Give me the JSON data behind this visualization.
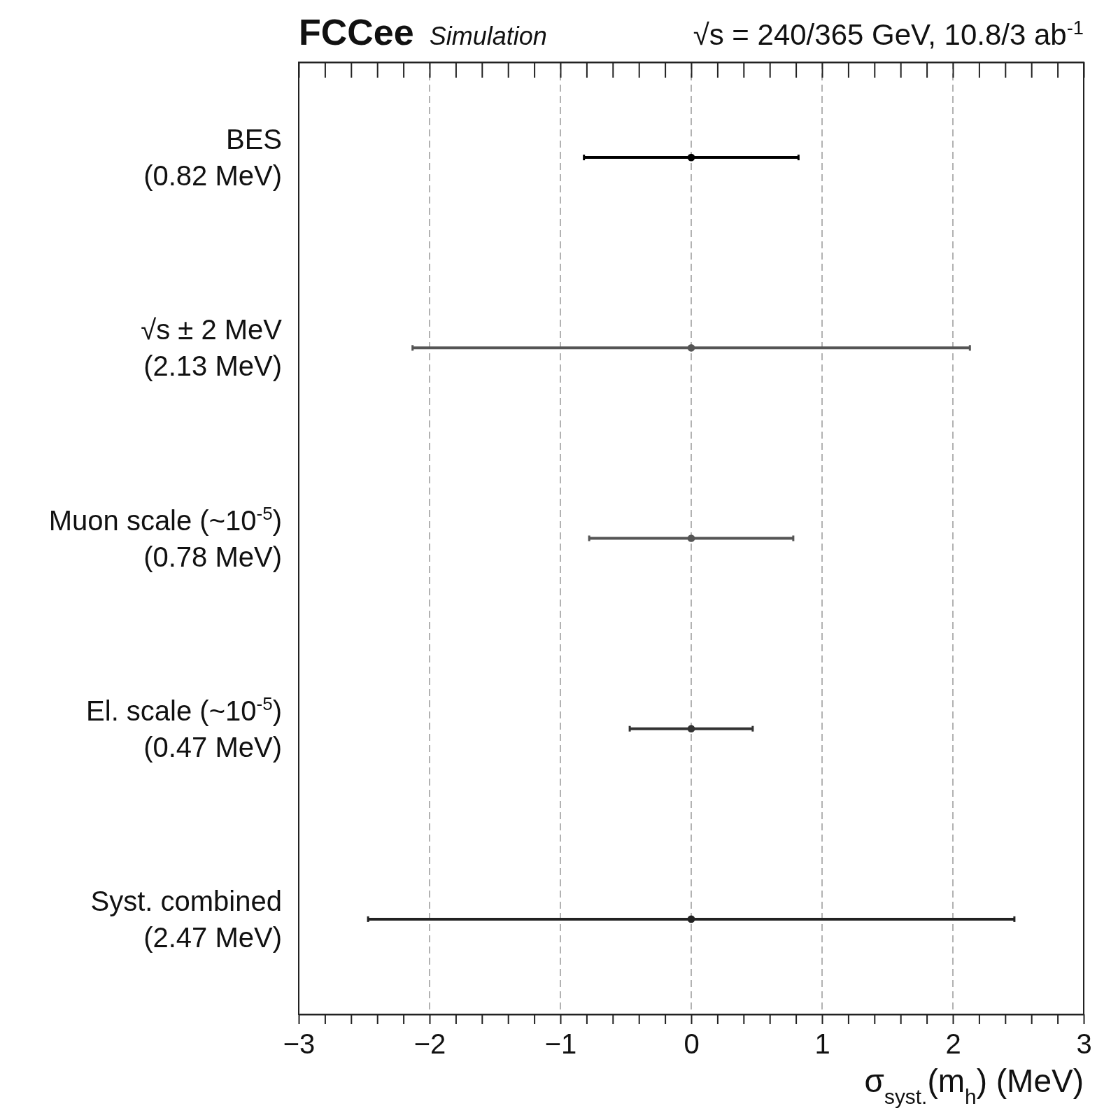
{
  "chart_data": {
    "type": "scatter",
    "orientation": "horizontal",
    "title": "FCCee",
    "subtitle": "Simulation",
    "annotations": [
      "√s = 240/365 GeV, 10.8/3 ab$^{-1}$"
    ],
    "xlabel": "σ$_{syst.}$(m$_{h}$) (MeV)",
    "categories": [
      "BES\n(0.82 MeV)",
      "√s ± 2 MeV\n(2.13 MeV)",
      "Muon scale (~10$^{-5}$)\n(0.78 MeV)",
      "El. scale (~10$^{-5}$)\n(0.47 MeV)",
      "Syst. combined\n(2.47 MeV)"
    ],
    "values": [
      0,
      0,
      0,
      0,
      0
    ],
    "errors": [
      0.82,
      2.13,
      0.78,
      0.47,
      2.47
    ],
    "colors": [
      "#000000",
      "#555555",
      "#555555",
      "#333333",
      "#222222"
    ],
    "marker": "circle",
    "grid": "x",
    "xlim": [
      -3,
      3
    ],
    "xticks": [
      {
        "value": -3,
        "label": "−3"
      },
      {
        "value": -2.8,
        "label": null
      },
      {
        "value": -2.6,
        "label": null
      },
      {
        "value": -2.4,
        "label": null
      },
      {
        "value": -2.2,
        "label": null
      },
      {
        "value": -2,
        "label": "−2"
      },
      {
        "value": -1.8,
        "label": null
      },
      {
        "value": -1.6,
        "label": null
      },
      {
        "value": -1.4,
        "label": null
      },
      {
        "value": -1.2,
        "label": null
      },
      {
        "value": -1,
        "label": "−1"
      },
      {
        "value": -0.8,
        "label": null
      },
      {
        "value": -0.6,
        "label": null
      },
      {
        "value": -0.4,
        "label": null
      },
      {
        "value": -0.2,
        "label": null
      },
      0,
      {
        "value": 0.2,
        "label": null
      },
      {
        "value": 0.4,
        "label": null
      },
      {
        "value": 0.6,
        "label": null
      },
      {
        "value": 0.8,
        "label": null
      },
      1,
      {
        "value": 1.2,
        "label": null
      },
      {
        "value": 1.4,
        "label": null
      },
      {
        "value": 1.6,
        "label": null
      },
      {
        "value": 1.8,
        "label": null
      },
      2,
      {
        "value": 2.2,
        "label": null
      },
      {
        "value": 2.4,
        "label": null
      },
      {
        "value": 2.6,
        "label": null
      },
      {
        "value": 2.8,
        "label": null
      },
      3
    ]
  }
}
